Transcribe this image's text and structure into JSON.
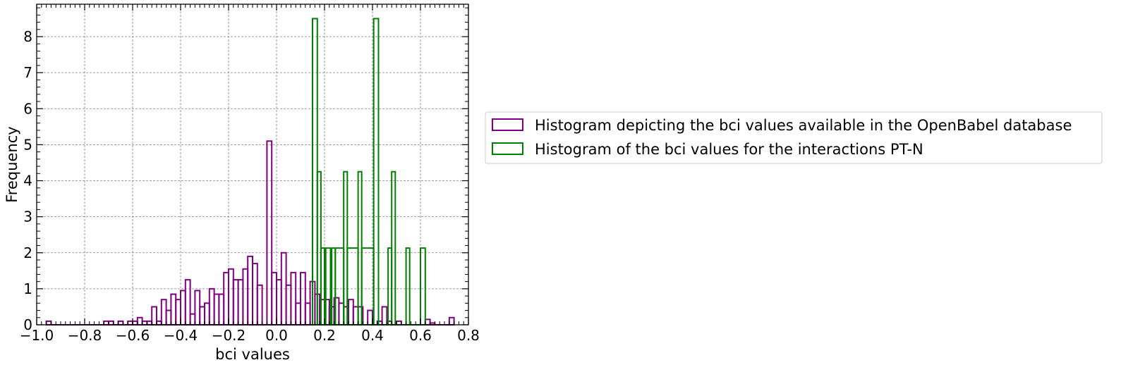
{
  "chart_data": {
    "type": "histogram",
    "xlabel": "bci values",
    "ylabel": "Frequency",
    "xlim": [
      -1.0,
      0.8
    ],
    "ylim": [
      0,
      8.9
    ],
    "xticks": [
      "−1.0",
      "−0.8",
      "−0.6",
      "−0.4",
      "−0.2",
      "0.0",
      "0.2",
      "0.4",
      "0.6",
      "0.8"
    ],
    "xtick_values": [
      -1.0,
      -0.8,
      -0.6,
      -0.4,
      -0.2,
      0.0,
      0.2,
      0.4,
      0.6,
      0.8
    ],
    "yticks": [
      "0",
      "1",
      "2",
      "3",
      "4",
      "5",
      "6",
      "7",
      "8"
    ],
    "ytick_values": [
      0,
      1,
      2,
      3,
      4,
      5,
      6,
      7,
      8
    ],
    "grid": true,
    "legend_position": "outside-right",
    "series": [
      {
        "name": "Histogram depicting the bci values available in the OpenBabel database",
        "color": "#800080",
        "bins": [
          [
            -0.96,
            -0.94,
            0.1
          ],
          [
            -0.94,
            -0.92,
            0.0
          ],
          [
            -0.92,
            -0.9,
            0.0
          ],
          [
            -0.9,
            -0.72,
            0.0
          ],
          [
            -0.72,
            -0.7,
            0.1
          ],
          [
            -0.7,
            -0.68,
            0.1
          ],
          [
            -0.68,
            -0.66,
            0.0
          ],
          [
            -0.66,
            -0.64,
            0.1
          ],
          [
            -0.64,
            -0.62,
            0.0
          ],
          [
            -0.62,
            -0.6,
            0.1
          ],
          [
            -0.6,
            -0.58,
            0.1
          ],
          [
            -0.58,
            -0.56,
            0.2
          ],
          [
            -0.56,
            -0.54,
            0.1
          ],
          [
            -0.54,
            -0.52,
            0.1
          ],
          [
            -0.52,
            -0.5,
            0.5
          ],
          [
            -0.5,
            -0.48,
            0.1
          ],
          [
            -0.48,
            -0.46,
            0.7
          ],
          [
            -0.46,
            -0.44,
            0.4
          ],
          [
            -0.44,
            -0.42,
            0.85
          ],
          [
            -0.42,
            -0.4,
            0.7
          ],
          [
            -0.4,
            -0.38,
            0.95
          ],
          [
            -0.38,
            -0.36,
            1.25
          ],
          [
            -0.36,
            -0.34,
            0.3
          ],
          [
            -0.34,
            -0.32,
            0.95
          ],
          [
            -0.32,
            -0.3,
            0.5
          ],
          [
            -0.3,
            -0.28,
            0.6
          ],
          [
            -0.28,
            -0.26,
            1.0
          ],
          [
            -0.26,
            -0.24,
            0.85
          ],
          [
            -0.24,
            -0.22,
            0.85
          ],
          [
            -0.22,
            -0.2,
            1.45
          ],
          [
            -0.2,
            -0.18,
            1.55
          ],
          [
            -0.18,
            -0.16,
            1.25
          ],
          [
            -0.16,
            -0.14,
            1.25
          ],
          [
            -0.14,
            -0.12,
            1.55
          ],
          [
            -0.12,
            -0.1,
            1.9
          ],
          [
            -0.1,
            -0.08,
            1.7
          ],
          [
            -0.08,
            -0.06,
            1.1
          ],
          [
            -0.06,
            -0.04,
            0.0
          ],
          [
            -0.04,
            -0.02,
            5.1
          ],
          [
            -0.02,
            0.0,
            1.45
          ],
          [
            0.0,
            0.02,
            1.25
          ],
          [
            0.02,
            0.04,
            2.0
          ],
          [
            0.04,
            0.06,
            1.1
          ],
          [
            0.06,
            0.08,
            1.45
          ],
          [
            0.08,
            0.1,
            0.6
          ],
          [
            0.1,
            0.12,
            1.45
          ],
          [
            0.12,
            0.14,
            0.6
          ],
          [
            0.14,
            0.16,
            1.2
          ],
          [
            0.16,
            0.18,
            0.85
          ],
          [
            0.18,
            0.2,
            0.7
          ],
          [
            0.2,
            0.22,
            0.7
          ],
          [
            0.22,
            0.24,
            0.5
          ],
          [
            0.24,
            0.26,
            0.75
          ],
          [
            0.26,
            0.28,
            0.6
          ],
          [
            0.28,
            0.3,
            0.5
          ],
          [
            0.3,
            0.32,
            0.7
          ],
          [
            0.32,
            0.34,
            0.5
          ],
          [
            0.34,
            0.36,
            0.5
          ],
          [
            0.36,
            0.38,
            0.0
          ],
          [
            0.38,
            0.4,
            0.4
          ],
          [
            0.4,
            0.42,
            0.0
          ],
          [
            0.42,
            0.44,
            0.1
          ],
          [
            0.44,
            0.46,
            0.5
          ],
          [
            0.46,
            0.48,
            0.1
          ],
          [
            0.48,
            0.5,
            0.0
          ],
          [
            0.5,
            0.52,
            0.1
          ],
          [
            0.52,
            0.54,
            0.0
          ],
          [
            0.54,
            0.62,
            0.0
          ],
          [
            0.62,
            0.64,
            0.15
          ],
          [
            0.64,
            0.66,
            0.05
          ],
          [
            0.66,
            0.72,
            0.0
          ],
          [
            0.72,
            0.74,
            0.2
          ]
        ]
      },
      {
        "name": "Histogram of the bci values for the interactions PT-N",
        "color": "#008000",
        "bins": [
          [
            0.15,
            0.17,
            8.5
          ],
          [
            0.17,
            0.185,
            4.25
          ],
          [
            0.185,
            0.2,
            2.13
          ],
          [
            0.2,
            0.205,
            0.0
          ],
          [
            0.205,
            0.225,
            2.13
          ],
          [
            0.225,
            0.23,
            0.0
          ],
          [
            0.23,
            0.245,
            2.13
          ],
          [
            0.245,
            0.28,
            2.13
          ],
          [
            0.28,
            0.295,
            4.25
          ],
          [
            0.295,
            0.34,
            2.13
          ],
          [
            0.34,
            0.355,
            4.25
          ],
          [
            0.355,
            0.405,
            2.13
          ],
          [
            0.405,
            0.425,
            8.5
          ],
          [
            0.425,
            0.465,
            0.0
          ],
          [
            0.465,
            0.48,
            2.13
          ],
          [
            0.48,
            0.495,
            4.25
          ],
          [
            0.495,
            0.54,
            0.0
          ],
          [
            0.54,
            0.555,
            2.13
          ],
          [
            0.555,
            0.6,
            0.0
          ],
          [
            0.6,
            0.62,
            2.13
          ]
        ]
      }
    ]
  }
}
